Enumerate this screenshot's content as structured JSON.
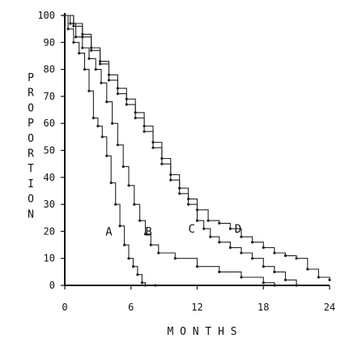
{
  "chart_data": {
    "type": "line",
    "title": "",
    "xlabel": "MONTHS",
    "ylabel": "PROPORTION",
    "xlim": [
      0,
      24
    ],
    "ylim": [
      0,
      100
    ],
    "x_ticks": [
      0,
      6,
      12,
      18,
      24
    ],
    "y_ticks": [
      0,
      10,
      20,
      30,
      40,
      50,
      60,
      70,
      80,
      90,
      100
    ],
    "grid": false,
    "legend": "none",
    "series": [
      {
        "name": "A",
        "label_at": [
          4.0,
          20
        ],
        "x": [
          0,
          0.3,
          0.8,
          1.3,
          1.8,
          2.2,
          2.6,
          3.0,
          3.4,
          3.8,
          4.2,
          4.6,
          5.0,
          5.4,
          5.8,
          6.2,
          6.6,
          7.0,
          7.3,
          8.2
        ],
        "y": [
          100,
          95,
          90,
          86,
          80,
          72,
          62,
          59,
          55,
          48,
          38,
          30,
          22,
          15,
          10,
          7,
          4,
          1,
          0,
          0
        ]
      },
      {
        "name": "B",
        "label_at": [
          7.6,
          20
        ],
        "x": [
          0,
          0.5,
          1.0,
          1.6,
          2.2,
          2.8,
          3.3,
          3.8,
          4.3,
          4.8,
          5.3,
          5.8,
          6.3,
          6.8,
          7.3,
          7.8,
          8.5,
          10,
          12,
          14,
          16,
          18,
          19
        ],
        "y": [
          100,
          97,
          92,
          88,
          84,
          80,
          75,
          68,
          60,
          52,
          44,
          37,
          30,
          24,
          19,
          15,
          12,
          10,
          7,
          5,
          3,
          1,
          0
        ]
      },
      {
        "name": "C",
        "label_at": [
          11.5,
          21
        ],
        "x": [
          0,
          0.8,
          1.6,
          2.4,
          3.2,
          4.0,
          4.8,
          5.6,
          6.4,
          7.2,
          8.0,
          8.8,
          9.6,
          10.4,
          11.2,
          12.0,
          12.6,
          13.2,
          14,
          15,
          16,
          17,
          18,
          19,
          20,
          21
        ],
        "y": [
          100,
          96,
          92,
          87,
          82,
          76,
          71,
          67,
          62,
          57,
          51,
          45,
          39,
          34,
          30,
          24,
          21,
          18,
          16,
          14,
          12,
          10,
          7,
          5,
          2,
          0
        ]
      },
      {
        "name": "D",
        "label_at": [
          15.7,
          21
        ],
        "x": [
          0,
          0.8,
          1.6,
          2.4,
          3.2,
          4.0,
          4.8,
          5.6,
          6.4,
          7.2,
          8.0,
          8.8,
          9.6,
          10.4,
          11.2,
          12.0,
          13.0,
          14,
          15,
          16,
          17,
          18,
          19,
          20,
          21,
          22,
          23,
          24
        ],
        "y": [
          100,
          97,
          93,
          88,
          83,
          78,
          73,
          69,
          64,
          59,
          53,
          47,
          41,
          36,
          32,
          28,
          24,
          23,
          21,
          18,
          16,
          14,
          12,
          11,
          10,
          6,
          3,
          2
        ]
      }
    ]
  }
}
